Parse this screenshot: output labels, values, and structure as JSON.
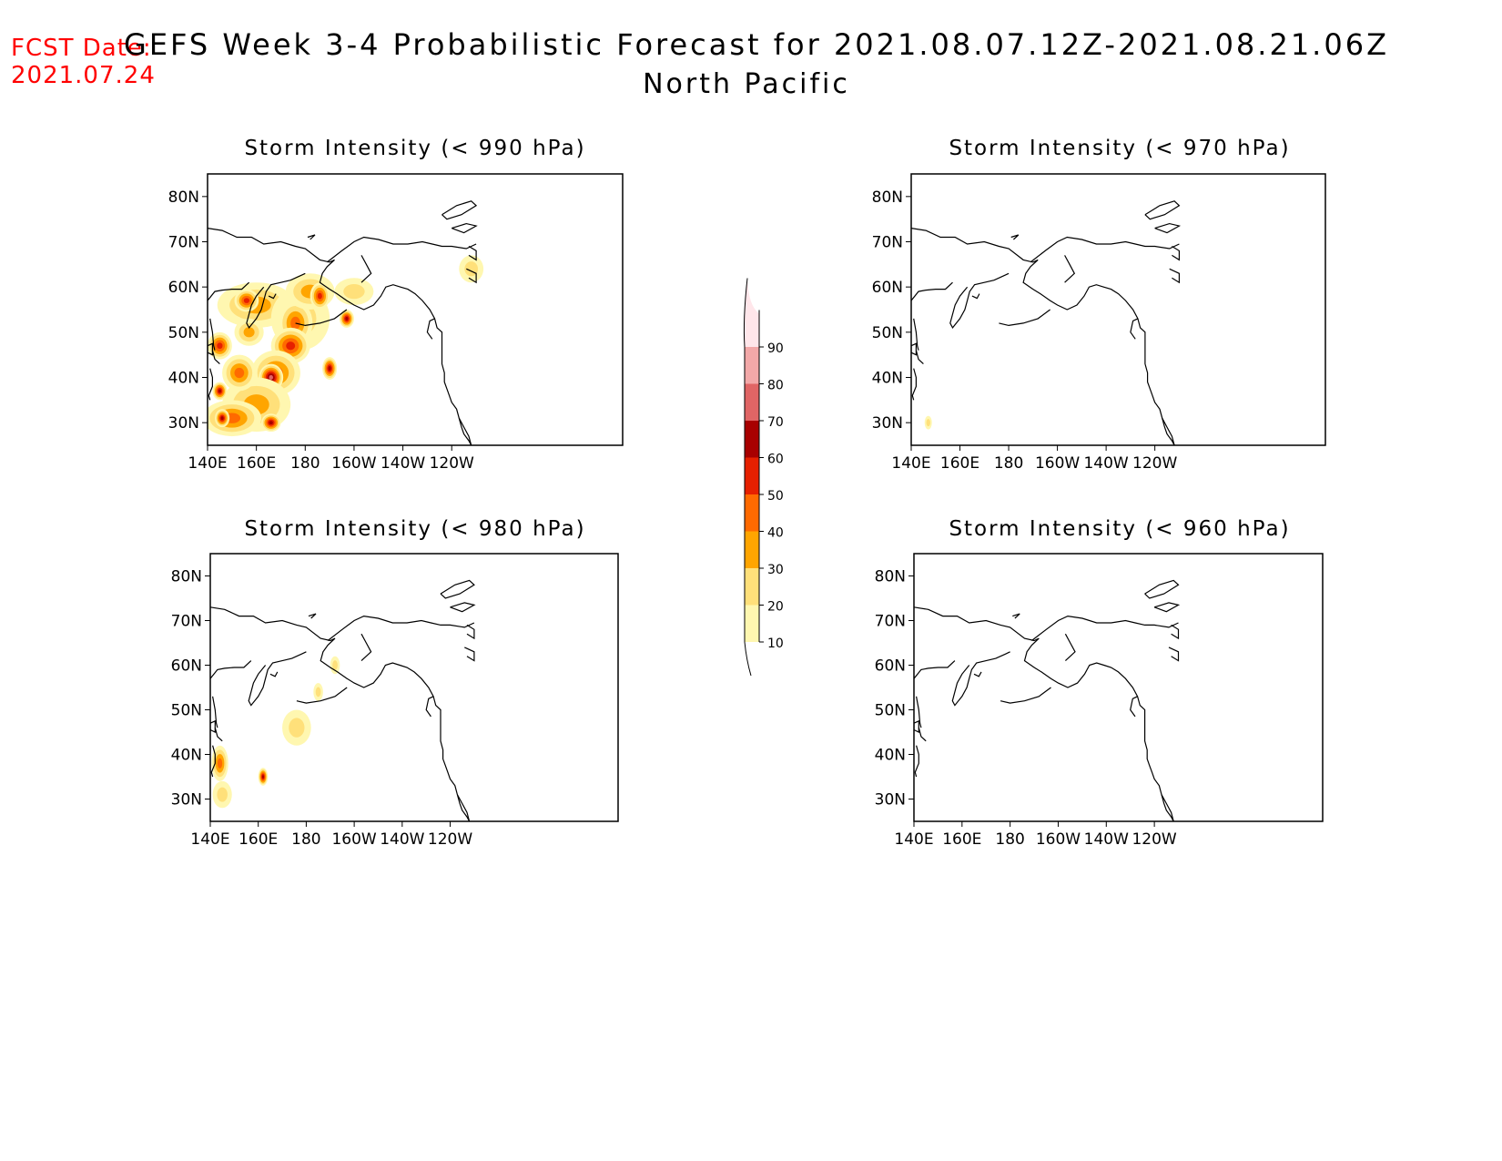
{
  "header": {
    "fcst_label": "FCST Date:",
    "fcst_date": "2021.07.24",
    "title": "GEFS Week 3-4 Probabilistic Forecast for 2021.08.07.12Z-2021.08.21.06Z",
    "subtitle": "North Pacific"
  },
  "panels": [
    {
      "id": "p990",
      "title": "Storm Intensity (< 990 hPa)"
    },
    {
      "id": "p970",
      "title": "Storm Intensity (< 970 hPa)"
    },
    {
      "id": "p980",
      "title": "Storm Intensity (< 980 hPa)"
    },
    {
      "id": "p960",
      "title": "Storm Intensity (< 960 hPa)"
    }
  ],
  "axes": {
    "lat_labels": [
      "80N",
      "70N",
      "60N",
      "50N",
      "40N",
      "30N"
    ],
    "lon_labels": [
      "140E",
      "160E",
      "180",
      "160W",
      "140W",
      "120W"
    ]
  },
  "colorbar": {
    "levels": [
      "10",
      "20",
      "30",
      "40",
      "50",
      "60",
      "70",
      "80",
      "90"
    ],
    "colors": [
      "#fff7b0",
      "#ffe07a",
      "#ffa500",
      "#ff6a00",
      "#e62000",
      "#a80000",
      "#e06565",
      "#f2a8a8",
      "#ffe6ea"
    ]
  },
  "chart_data": {
    "type": "map",
    "region": "North Pacific",
    "lon_range": [
      "140E",
      "110W"
    ],
    "lat_range": [
      "25N",
      "85N"
    ]
  }
}
